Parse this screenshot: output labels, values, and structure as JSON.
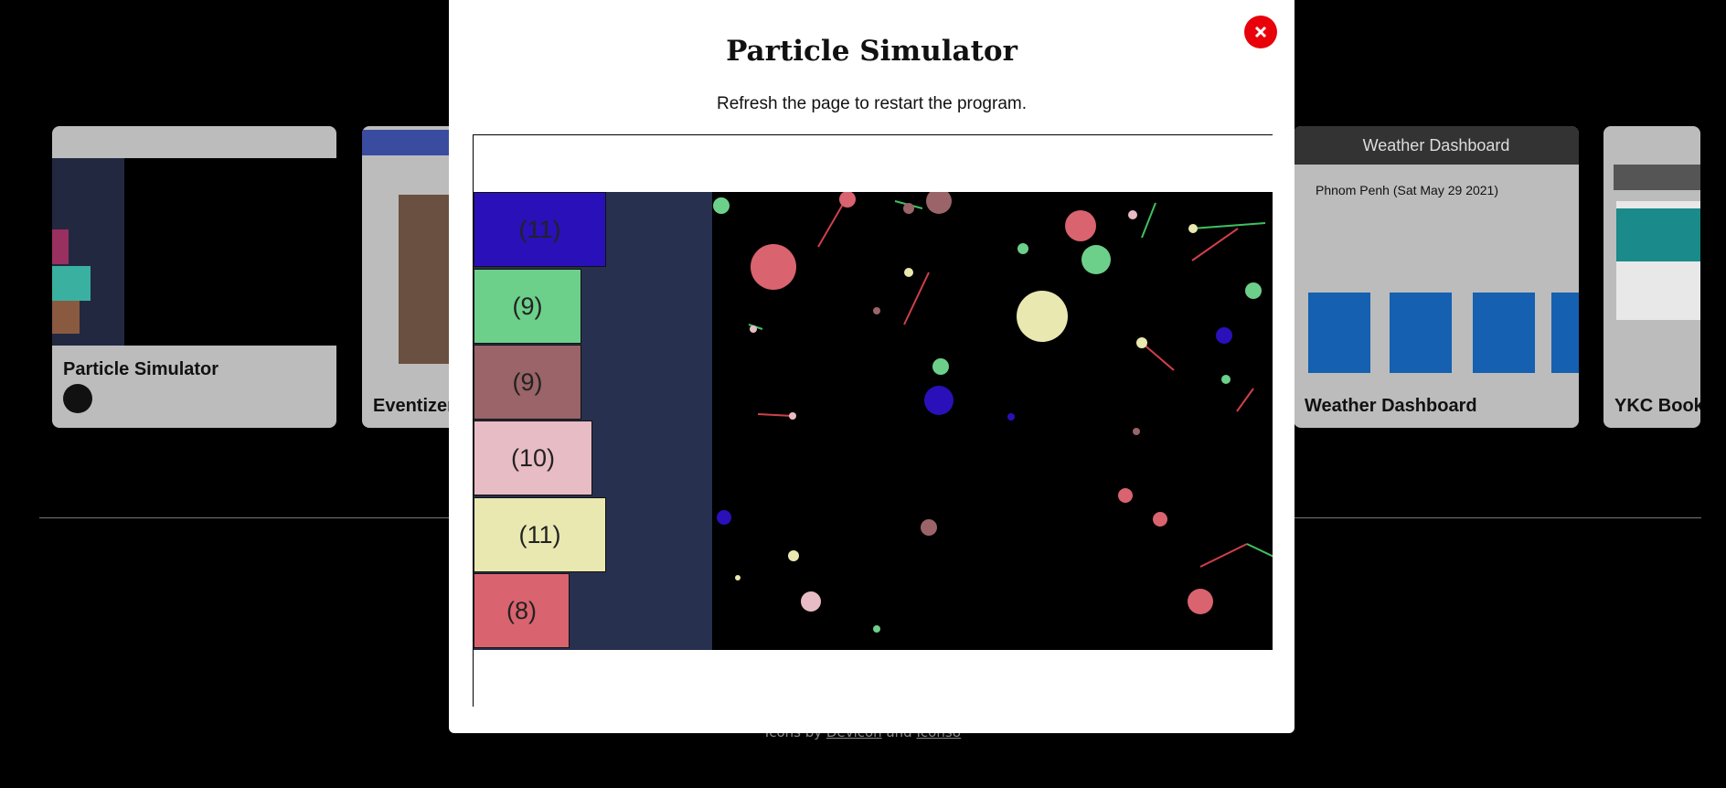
{
  "background": {
    "cards": [
      {
        "title": "Particle Simulator"
      },
      {
        "title": "Eventizer"
      },
      {
        "title": "Weather Dashboard"
      },
      {
        "title": "YKC Bookstore"
      }
    ],
    "weather": {
      "header": "Weather Dashboard",
      "city": "Phnom Penh (Sat May 29 2021)"
    },
    "footer": {
      "prefix": "Icons by",
      "link1": "Devicon",
      "middle": "and",
      "link2": "Icons8"
    }
  },
  "modal": {
    "title": "Particle Simulator",
    "subtitle": "Refresh the page to restart the program.",
    "bars": [
      "(11)",
      "(9)",
      "(9)",
      "(10)",
      "(11)",
      "(8)"
    ]
  }
}
